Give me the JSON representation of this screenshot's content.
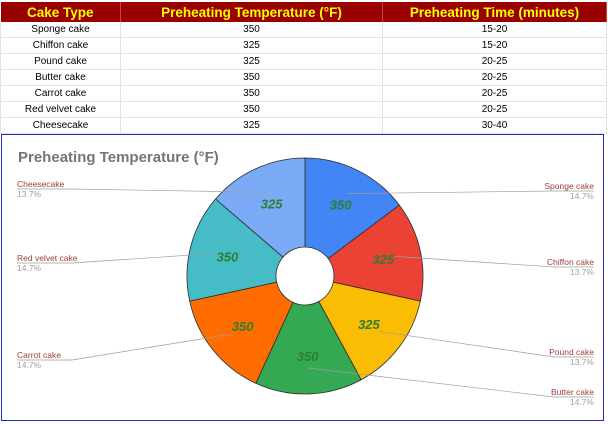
{
  "table": {
    "headers": [
      "Cake Type",
      "Preheating Temperature (°F)",
      "Preheating Time (minutes)"
    ],
    "rows": [
      [
        "Sponge cake",
        "350",
        "15-20"
      ],
      [
        "Chiffon cake",
        "325",
        "15-20"
      ],
      [
        "Pound cake",
        "325",
        "20-25"
      ],
      [
        "Butter cake",
        "350",
        "20-25"
      ],
      [
        "Carrot cake",
        "350",
        "20-25"
      ],
      [
        "Red velvet cake",
        "350",
        "20-25"
      ],
      [
        "Cheesecake",
        "325",
        "30-40"
      ]
    ]
  },
  "colors": {
    "header_bg": "#990000",
    "header_text": "#ffff00",
    "chart_border": "#1f2dbf",
    "slice_value_text": "#2e7d32"
  },
  "chart_data": {
    "type": "pie",
    "title": "Preheating Temperature (°F)",
    "donut": true,
    "slices": [
      {
        "label": "Sponge cake",
        "value": 350,
        "percent": "14.7%",
        "color": "#4285f4"
      },
      {
        "label": "Chiffon cake",
        "value": 325,
        "percent": "13.7%",
        "color": "#ea4335"
      },
      {
        "label": "Pound cake",
        "value": 325,
        "percent": "13.7%",
        "color": "#fbbc04"
      },
      {
        "label": "Butter cake",
        "value": 350,
        "percent": "14.7%",
        "color": "#34a853"
      },
      {
        "label": "Carrot cake",
        "value": 350,
        "percent": "14.7%",
        "color": "#ff6d01"
      },
      {
        "label": "Red velvet cake",
        "value": 350,
        "percent": "14.7%",
        "color": "#46bdc6"
      },
      {
        "label": "Cheesecake",
        "value": 325,
        "percent": "13.7%",
        "color": "#7baaf7"
      }
    ]
  }
}
